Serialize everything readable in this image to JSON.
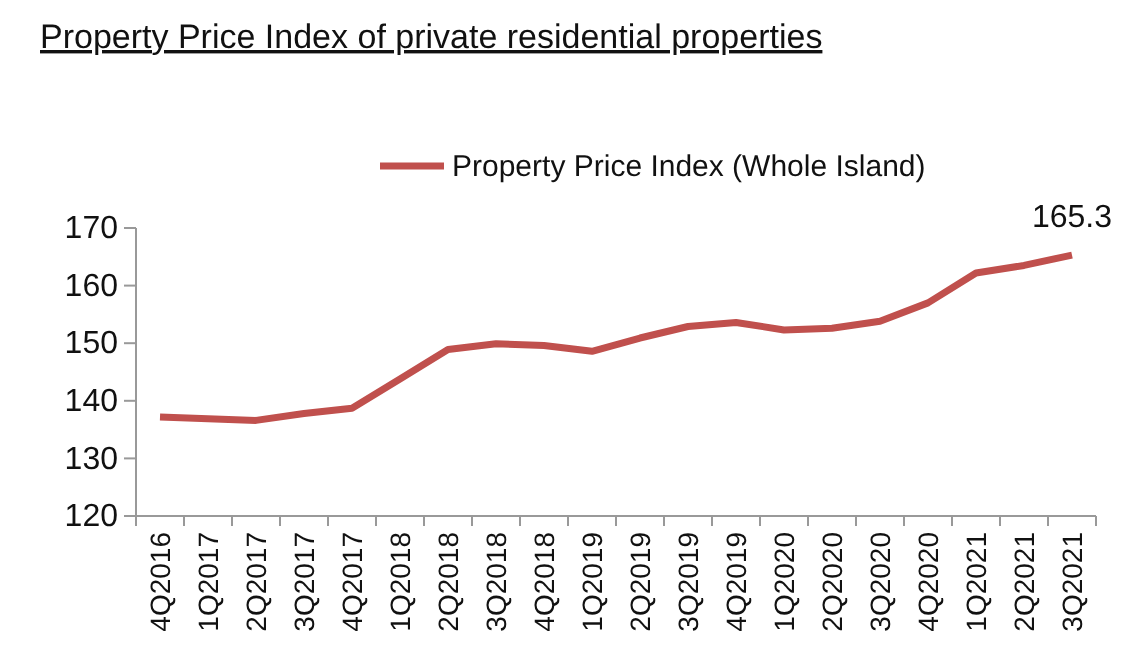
{
  "chart_data": {
    "type": "line",
    "title": "Property Price Index of private residential properties",
    "categories": [
      "4Q2016",
      "1Q2017",
      "2Q2017",
      "3Q2017",
      "4Q2017",
      "1Q2018",
      "2Q2018",
      "3Q2018",
      "4Q2018",
      "1Q2019",
      "2Q2019",
      "3Q2019",
      "4Q2019",
      "1Q2020",
      "2Q2020",
      "3Q2020",
      "4Q2020",
      "1Q2021",
      "2Q2021",
      "3Q2021"
    ],
    "series": [
      {
        "name": "Property Price Index (Whole Island)",
        "color": "#c0504d",
        "values": [
          137.2,
          136.9,
          136.6,
          137.8,
          138.7,
          143.8,
          148.9,
          149.9,
          149.6,
          148.6,
          150.9,
          152.9,
          153.6,
          152.3,
          152.6,
          153.8,
          157.0,
          162.2,
          163.5,
          165.3
        ]
      }
    ],
    "value_labels": [
      null,
      null,
      null,
      null,
      null,
      null,
      null,
      null,
      null,
      null,
      null,
      null,
      null,
      null,
      null,
      null,
      null,
      null,
      null,
      "165.3"
    ],
    "ylim": [
      120,
      170
    ],
    "yticks": [
      120,
      130,
      140,
      150,
      160,
      170
    ],
    "grid": false,
    "legend": "top",
    "marker": "none",
    "line_style": "solid"
  }
}
